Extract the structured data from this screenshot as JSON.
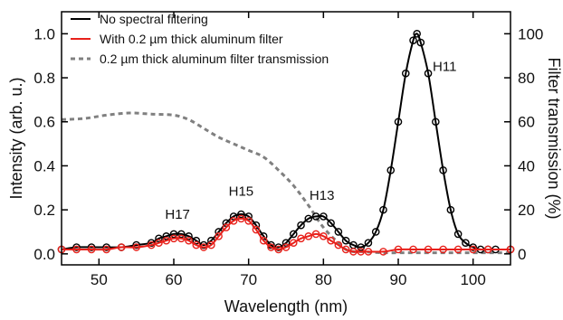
{
  "chart_data": {
    "type": "line",
    "xlabel": "Wavelength (nm)",
    "ylabel": "Intensity (arb. u.)",
    "y2label": "Filter transmission (%)",
    "xlim": [
      45,
      105
    ],
    "ylim": [
      -0.05,
      1.1
    ],
    "y2lim": [
      -5,
      110
    ],
    "x_ticks": [
      50,
      60,
      70,
      80,
      90,
      100
    ],
    "y_ticks": [
      0.0,
      0.2,
      0.4,
      0.6,
      0.8,
      1.0
    ],
    "y_tick_labels": [
      "0.0",
      "0.2",
      "0.4",
      "0.6",
      "0.8",
      "1.0"
    ],
    "y2_ticks": [
      0,
      20,
      40,
      60,
      80,
      100
    ],
    "grid": false,
    "legend_position": "top-left",
    "colors": {
      "black": "#000000",
      "red": "#e8211b",
      "gray": "#808080"
    },
    "series": [
      {
        "name": "No spectral filtering",
        "color": "#000000",
        "marker": "open-circle",
        "axis": "left",
        "x": [
          45,
          47,
          49,
          51,
          53,
          55,
          57,
          58,
          59,
          60,
          61,
          62,
          63,
          64,
          65,
          66,
          67,
          68,
          69,
          70,
          71,
          72,
          73,
          74,
          75,
          76,
          77,
          78,
          79,
          80,
          81,
          82,
          83,
          84,
          85,
          86,
          87,
          88,
          89,
          90,
          91,
          92,
          92.5,
          93,
          94,
          95,
          96,
          97,
          98,
          99,
          100,
          101,
          102,
          103,
          105
        ],
        "y": [
          0.02,
          0.03,
          0.03,
          0.03,
          0.03,
          0.04,
          0.05,
          0.07,
          0.08,
          0.09,
          0.09,
          0.08,
          0.06,
          0.04,
          0.06,
          0.1,
          0.14,
          0.17,
          0.18,
          0.17,
          0.13,
          0.08,
          0.04,
          0.03,
          0.05,
          0.09,
          0.13,
          0.16,
          0.17,
          0.17,
          0.14,
          0.1,
          0.06,
          0.04,
          0.03,
          0.05,
          0.1,
          0.2,
          0.38,
          0.6,
          0.82,
          0.97,
          1.0,
          0.96,
          0.82,
          0.6,
          0.38,
          0.2,
          0.09,
          0.05,
          0.03,
          0.02,
          0.02,
          0.02,
          0.02
        ]
      },
      {
        "name": "With 0.2 µm thick aluminum filter",
        "color": "#e8211b",
        "marker": "open-circle",
        "axis": "left",
        "x": [
          45,
          47,
          49,
          51,
          53,
          55,
          57,
          58,
          59,
          60,
          61,
          62,
          63,
          64,
          65,
          66,
          67,
          68,
          69,
          70,
          71,
          72,
          73,
          74,
          75,
          76,
          77,
          78,
          79,
          80,
          81,
          82,
          83,
          84,
          85,
          86,
          88,
          90,
          92,
          94,
          96,
          98,
          100,
          102,
          105
        ],
        "y": [
          0.02,
          0.02,
          0.02,
          0.02,
          0.03,
          0.03,
          0.04,
          0.05,
          0.06,
          0.07,
          0.07,
          0.06,
          0.04,
          0.03,
          0.04,
          0.08,
          0.12,
          0.15,
          0.16,
          0.15,
          0.11,
          0.06,
          0.03,
          0.02,
          0.03,
          0.05,
          0.07,
          0.08,
          0.09,
          0.08,
          0.06,
          0.04,
          0.02,
          0.01,
          0.01,
          0.01,
          0.01,
          0.02,
          0.02,
          0.02,
          0.02,
          0.02,
          0.02,
          0.02,
          0.02
        ]
      },
      {
        "name": "0.2 µm thick aluminum filter transmission",
        "color": "#808080",
        "style": "dashed",
        "axis": "right",
        "x": [
          45,
          48,
          51,
          54,
          57,
          60,
          62,
          64,
          66,
          68,
          70,
          72,
          74,
          76,
          78,
          80,
          82,
          83,
          84,
          85,
          88,
          92,
          96,
          100,
          105
        ],
        "y": [
          61,
          61.5,
          63,
          64,
          63.5,
          63,
          61,
          57,
          53,
          50,
          47,
          44,
          38,
          31,
          22,
          12,
          5,
          2,
          1,
          1,
          0.5,
          0.5,
          0.5,
          0.5,
          0.5
        ]
      }
    ],
    "annotations": [
      {
        "text": "H11",
        "x": 96.2,
        "y": 0.83
      },
      {
        "text": "H13",
        "x": 79.8,
        "y": 0.245
      },
      {
        "text": "H15",
        "x": 69.0,
        "y": 0.265
      },
      {
        "text": "H17",
        "x": 60.5,
        "y": 0.16
      }
    ]
  }
}
